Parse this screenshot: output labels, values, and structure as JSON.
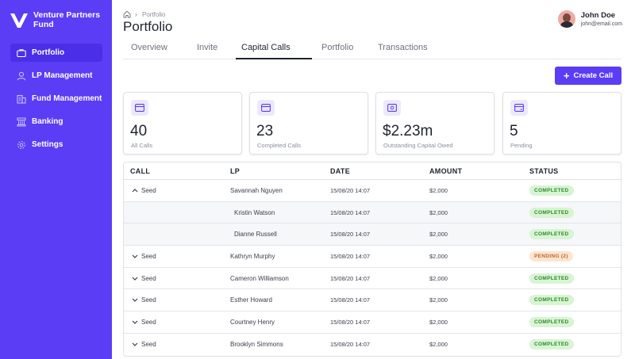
{
  "brand": {
    "name": "Venture Partners Fund",
    "logo_color": "#ffffff"
  },
  "sidebar": {
    "items": [
      {
        "label": "Portfolio",
        "icon": "briefcase-icon",
        "active": true
      },
      {
        "label": "LP Management",
        "icon": "user-icon",
        "active": false
      },
      {
        "label": "Fund Management",
        "icon": "building-icon",
        "active": false
      },
      {
        "label": "Banking",
        "icon": "bank-icon",
        "active": false
      },
      {
        "label": "Settings",
        "icon": "gear-icon",
        "active": false
      }
    ]
  },
  "header": {
    "breadcrumb": {
      "home_icon": "home-icon",
      "current": "Portfolio"
    },
    "title": "Portfolio",
    "user": {
      "name": "John Doe",
      "email": "john@email.com"
    }
  },
  "tabs": [
    {
      "label": "Overview",
      "active": false
    },
    {
      "label": "Invite",
      "active": false
    },
    {
      "label": "Capital Calls",
      "active": true
    },
    {
      "label": "Portfolio",
      "active": false
    },
    {
      "label": "Transactions",
      "active": false
    }
  ],
  "actions": {
    "create_call_label": "Create Call"
  },
  "stats": [
    {
      "value": "40",
      "label": "All Calls",
      "icon": "card-icon"
    },
    {
      "value": "23",
      "label": "Completed Calls",
      "icon": "card-icon"
    },
    {
      "value": "$2.23m",
      "label": "Outstanding Capital Owed",
      "icon": "money-icon"
    },
    {
      "value": "5",
      "label": "Pending",
      "icon": "card-pending-icon"
    }
  ],
  "table": {
    "columns": [
      "CALL",
      "LP",
      "DATE",
      "AMOUNT",
      "STATUS"
    ],
    "rows": [
      {
        "call": "Seed",
        "chevron": "up",
        "lp": "Savannah Nguyen",
        "date": "15/08/20 14:07",
        "amount": "$2,000",
        "status": "COMPLETED",
        "sub": false
      },
      {
        "call": "",
        "chevron": "",
        "lp": "Kristin Watson",
        "date": "15/08/20 14:07",
        "amount": "$2,000",
        "status": "COMPLETED",
        "sub": true
      },
      {
        "call": "",
        "chevron": "",
        "lp": "Dianne Russell",
        "date": "15/08/20 14:07",
        "amount": "$2,000",
        "status": "COMPLETED",
        "sub": true
      },
      {
        "call": "Seed",
        "chevron": "down",
        "lp": "Kathryn Murphy",
        "date": "15/08/20 14:07",
        "amount": "$2,000",
        "status": "PENDING (2)",
        "sub": false
      },
      {
        "call": "Seed",
        "chevron": "down",
        "lp": "Cameron Williamson",
        "date": "15/08/20 14:07",
        "amount": "$2,000",
        "status": "COMPLETED",
        "sub": false
      },
      {
        "call": "Seed",
        "chevron": "down",
        "lp": "Esther Howard",
        "date": "15/08/20 14:07",
        "amount": "$2,000",
        "status": "COMPLETED",
        "sub": false
      },
      {
        "call": "Seed",
        "chevron": "down",
        "lp": "Courtney Henry",
        "date": "15/08/20 14:07",
        "amount": "$2,000",
        "status": "COMPLETED",
        "sub": false
      },
      {
        "call": "Seed",
        "chevron": "down",
        "lp": "Brooklyn Simmons",
        "date": "15/08/20 14:07",
        "amount": "$2,000",
        "status": "COMPLETED",
        "sub": false
      }
    ]
  },
  "colors": {
    "accent": "#5b3df5",
    "completed_bg": "#d7f5d3",
    "completed_text": "#2f8a2a",
    "pending_bg": "#fde5d3",
    "pending_text": "#c1661f"
  }
}
